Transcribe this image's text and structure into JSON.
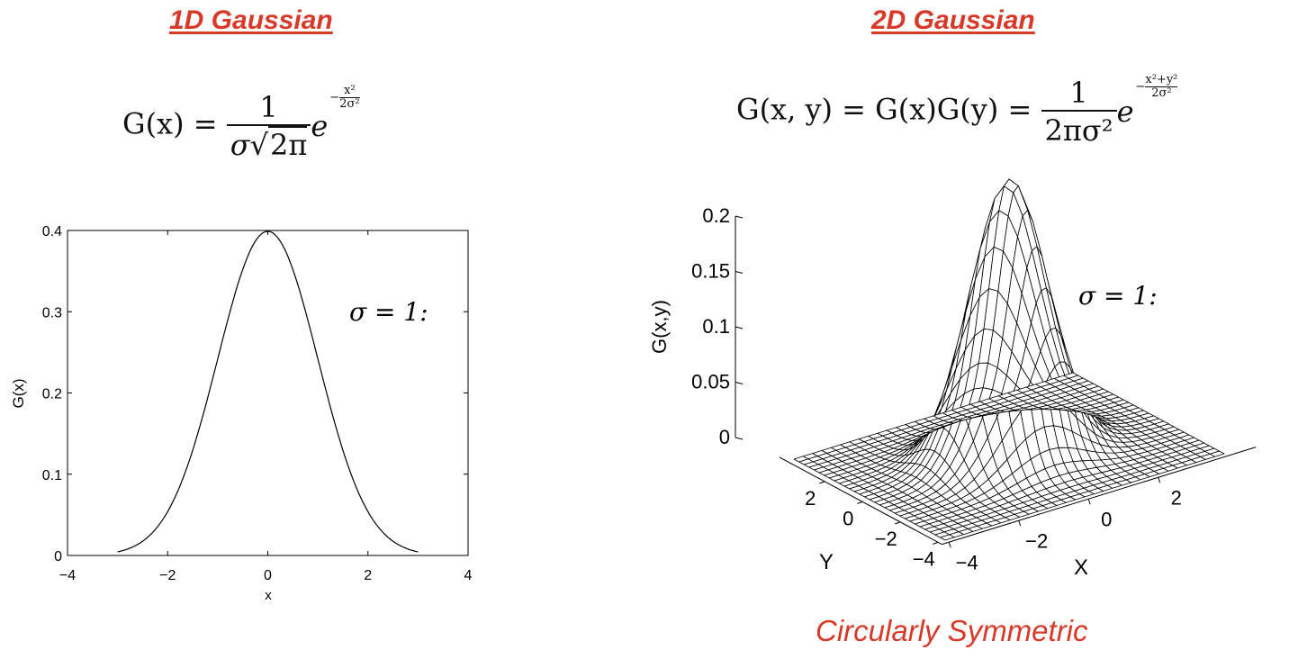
{
  "slide": {
    "title_1d": "1D Gaussian",
    "title_2d": "2D Gaussian",
    "caption": "Circularly Symmetric",
    "accent_color": "#d83a2a",
    "eq_1d": {
      "lhs": "G(x) =",
      "num": "1",
      "den_sigma": "σ",
      "den_root": "2π",
      "base": "e",
      "exp_sign": "−",
      "exp_num": "x²",
      "exp_den": "2σ²"
    },
    "eq_2d": {
      "lhs": "G(x, y) = G(x)G(y) =",
      "num": "1",
      "den": "2πσ²",
      "base": "e",
      "exp_sign": "−",
      "exp_num": "x²+y²",
      "exp_den": "2σ²"
    }
  },
  "chart_data": [
    {
      "type": "line",
      "xlabel": "x",
      "ylabel": "G(x)",
      "xlim": [
        -4,
        4
      ],
      "ylim": [
        0,
        0.4
      ],
      "x_ticks": [
        -4,
        -2,
        0,
        2,
        4
      ],
      "x_tick_labels": [
        "−4",
        "−2",
        "0",
        "2",
        "4"
      ],
      "y_ticks": [
        0,
        0.1,
        0.2,
        0.3,
        0.4
      ],
      "y_tick_labels": [
        "0",
        "0.1",
        "0.2",
        "0.3",
        "0.4"
      ],
      "annotation": "σ = 1:",
      "series": [
        {
          "x": [
            -3,
            -2.75,
            -2.5,
            -2.25,
            -2,
            -1.75,
            -1.5,
            -1.25,
            -1,
            -0.75,
            -0.5,
            -0.25,
            0,
            0.25,
            0.5,
            0.75,
            1,
            1.25,
            1.5,
            1.75,
            2,
            2.25,
            2.5,
            2.75,
            3
          ],
          "y": [
            0.0044,
            0.0091,
            0.0175,
            0.0317,
            0.054,
            0.0863,
            0.1295,
            0.1826,
            0.242,
            0.3011,
            0.3521,
            0.3867,
            0.3989,
            0.3867,
            0.3521,
            0.3011,
            0.242,
            0.1826,
            0.1295,
            0.0863,
            0.054,
            0.0317,
            0.0175,
            0.0091,
            0.0044
          ]
        }
      ]
    },
    {
      "type": "surface",
      "xlabel": "X",
      "ylabel": "Y",
      "zlabel": "G(x,y)",
      "xlim": [
        -4,
        4
      ],
      "ylim": [
        -4,
        4
      ],
      "zlim": [
        0,
        0.2
      ],
      "sigma": 1,
      "grid_n": 31,
      "x_tick_labels": [
        "−4",
        "−2",
        "0",
        "2"
      ],
      "y_tick_labels": [
        "−4",
        "−2",
        "0",
        "2"
      ],
      "z_tick_labels": [
        "0",
        "0.05",
        "0.1",
        "0.15",
        "0.2"
      ],
      "peak": 0.159,
      "annotation": "σ = 1:"
    }
  ]
}
